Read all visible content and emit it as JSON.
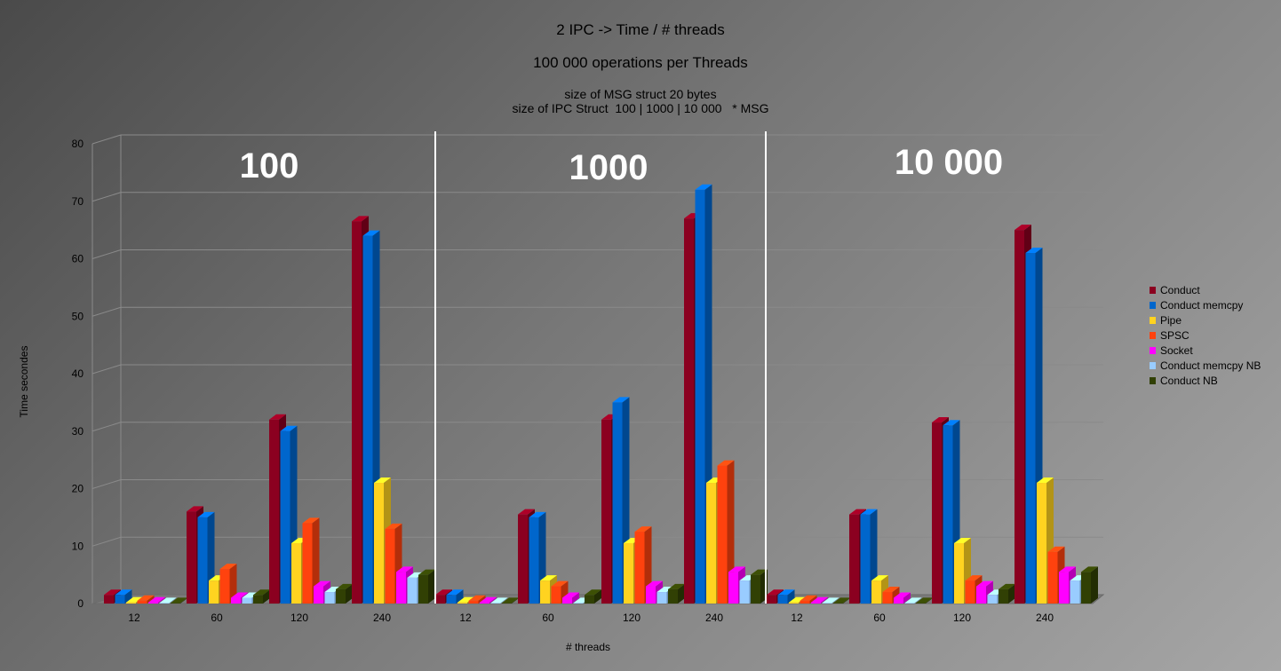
{
  "chart_data": {
    "type": "bar",
    "title": "2 IPC  -> Time / # threads",
    "subtitle": "100 000 operations per Threads",
    "notes": [
      "size of MSG struct 20 bytes",
      "size of IPC Struct  100 | 1000 | 10 000   * MSG"
    ],
    "xlabel": "# threads",
    "ylabel": "Time secondes",
    "ylim": [
      0,
      80
    ],
    "yticks": [
      0,
      10,
      20,
      30,
      40,
      50,
      60,
      70,
      80
    ],
    "grid": true,
    "legend_position": "right",
    "groups": [
      "100",
      "1000",
      "10 000"
    ],
    "categories": [
      "12",
      "60",
      "120",
      "240",
      "12",
      "60",
      "120",
      "240",
      "12",
      "60",
      "120",
      "240"
    ],
    "series": [
      {
        "name": "Conduct",
        "color": "#8b0020",
        "values": [
          1.5,
          16,
          32,
          66.5,
          1.5,
          15.5,
          32,
          67,
          1.5,
          15.5,
          31.5,
          65
        ]
      },
      {
        "name": "Conduct memcpy",
        "color": "#0066cc",
        "values": [
          1.5,
          15,
          30,
          64,
          1.5,
          15,
          35,
          72,
          1.5,
          15.5,
          31,
          61
        ]
      },
      {
        "name": "Pipe",
        "color": "#ffd320",
        "values": [
          0.2,
          4,
          10.5,
          21,
          0.2,
          4,
          10.5,
          21,
          0.2,
          4,
          10.5,
          21
        ]
      },
      {
        "name": "SPSC",
        "color": "#ff420e",
        "values": [
          0.5,
          6,
          14,
          13,
          0.5,
          3,
          12.5,
          24,
          0.5,
          2,
          4,
          9
        ]
      },
      {
        "name": "Socket",
        "color": "#ff00ff",
        "values": [
          0.2,
          1,
          3,
          5.5,
          0.2,
          1,
          3,
          5.5,
          0.2,
          1,
          3,
          5.5
        ]
      },
      {
        "name": "Conduct memcpy NB",
        "color": "#99ccff",
        "values": [
          0.1,
          1,
          2,
          4.5,
          0.1,
          0.1,
          2,
          4,
          0.1,
          0.1,
          1.5,
          4
        ]
      },
      {
        "name": "Conduct NB",
        "color": "#314004",
        "values": [
          0.1,
          1.5,
          2.5,
          5,
          0.1,
          1.5,
          2.5,
          5,
          0.1,
          0.1,
          2.5,
          5.5
        ]
      }
    ]
  }
}
